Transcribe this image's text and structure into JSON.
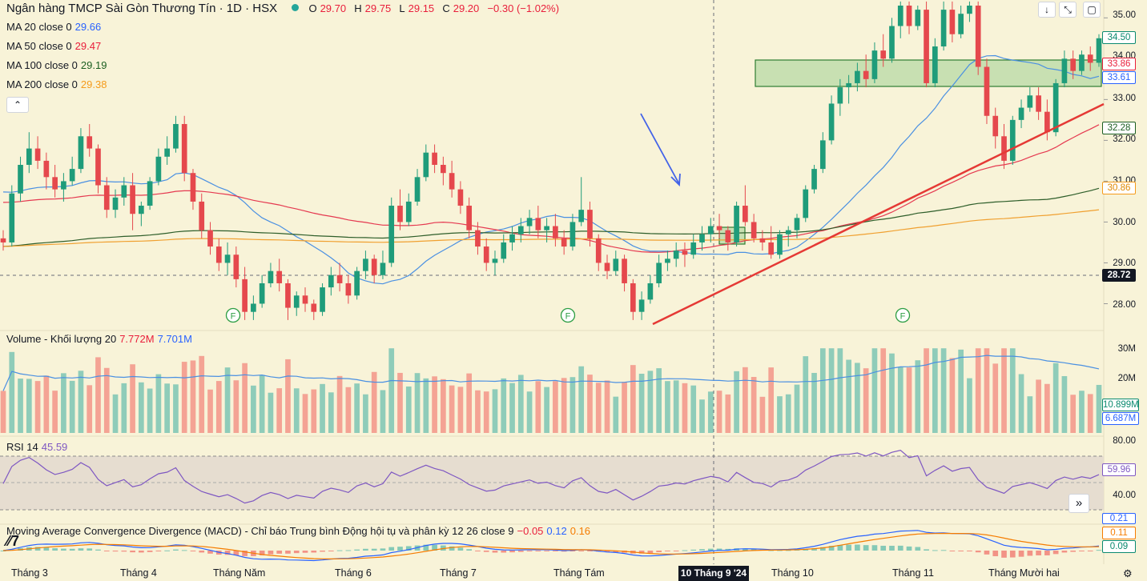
{
  "header": {
    "title": "Ngân hàng TMCP Sài Gòn Thương Tín · 1D · HSX",
    "ohlc": {
      "o_label": "O",
      "o": "29.70",
      "h_label": "H",
      "h": "29.75",
      "l_label": "L",
      "l": "29.15",
      "c_label": "C",
      "c": "29.20",
      "chg": "−0.30 (−1.02%)"
    }
  },
  "ma_legend": [
    {
      "label": "MA 20 close 0",
      "value": "29.66",
      "color": "#2962ff"
    },
    {
      "label": "MA 50 close 0",
      "value": "29.47",
      "color": "#e91e3b"
    },
    {
      "label": "MA 100 close 0",
      "value": "29.19",
      "color": "#1b5e20"
    },
    {
      "label": "MA 200 close 0",
      "value": "29.38",
      "color": "#f59b1b"
    }
  ],
  "volume_legend": {
    "label": "Volume - Khối lượng 20",
    "v1": "7.772M",
    "v2": "7.701M"
  },
  "rsi_legend": {
    "label": "RSI 14",
    "value": "45.59"
  },
  "macd_legend": {
    "label": "Moving Average Convergence Divergence (MACD) - Chỉ báo Trung bình Động hội tụ và phân kỳ 12 26 close 9",
    "v1": "−0.05",
    "v2": "0.12",
    "v3": "0.16"
  },
  "price_axis": {
    "ticks": [
      "35.00",
      "34.00",
      "33.00",
      "32.00",
      "31.00",
      "30.00",
      "29.00",
      "28.00"
    ]
  },
  "price_tags": [
    {
      "value": "34.50",
      "color": "#0b8a6f",
      "style": "outline"
    },
    {
      "value": "33.86",
      "color": "#e91e3b",
      "style": "outline"
    },
    {
      "value": "33.61",
      "color": "#2962ff",
      "style": "outline"
    },
    {
      "value": "32.28",
      "color": "#1b5e20",
      "style": "outline"
    },
    {
      "value": "30.86",
      "color": "#f59b1b",
      "style": "outline"
    },
    {
      "value": "28.72",
      "color": "#131722",
      "style": "filled"
    }
  ],
  "volume_axis": {
    "ticks": [
      "30M",
      "20M"
    ],
    "tags": [
      {
        "value": "10.899M",
        "color": "#0b8a6f"
      },
      {
        "value": "6.687M",
        "color": "#2962ff"
      }
    ]
  },
  "rsi_axis": {
    "ticks": [
      "80.00",
      "40.00"
    ],
    "tag": "59.96"
  },
  "macd_axis": {
    "tags": [
      {
        "value": "0.21",
        "color": "#2962ff"
      },
      {
        "value": "0.11",
        "color": "#f57c00"
      },
      {
        "value": "0.09",
        "color": "#0b8a6f"
      }
    ]
  },
  "x_axis": {
    "labels": [
      "Tháng 3",
      "Tháng 4",
      "Tháng Năm",
      "Tháng 6",
      "Tháng 7",
      "Tháng Tám",
      "Tháng 10",
      "Tháng 11",
      "Tháng Mười hai"
    ],
    "crosshair_label": "10 Tháng 9 '24"
  },
  "markers": {
    "dividend_symbol": "F"
  },
  "icons": [
    "chevron-up-icon",
    "arrow-down-icon",
    "expand-icon",
    "fullscreen-icon",
    "double-chevron-right-icon",
    "tradingview-logo-icon"
  ],
  "chart_data": {
    "type": "candlestick",
    "ylim": [
      27.5,
      35.3
    ],
    "rsi_levels": [
      70,
      50,
      30
    ],
    "ohlc": [
      [
        29.6,
        29.8,
        29.3,
        29.5
      ],
      [
        29.5,
        30.9,
        29.4,
        30.7
      ],
      [
        30.7,
        31.6,
        30.5,
        31.4
      ],
      [
        31.4,
        32.2,
        31.2,
        31.8
      ],
      [
        31.8,
        32.1,
        31.3,
        31.5
      ],
      [
        31.5,
        31.7,
        30.8,
        31.1
      ],
      [
        31.1,
        31.4,
        30.6,
        30.8
      ],
      [
        30.8,
        31.2,
        30.5,
        31.0
      ],
      [
        31.0,
        31.6,
        30.9,
        31.3
      ],
      [
        31.3,
        32.3,
        31.2,
        32.1
      ],
      [
        32.1,
        32.4,
        31.6,
        31.8
      ],
      [
        31.8,
        31.9,
        30.7,
        30.9
      ],
      [
        30.9,
        31.1,
        30.1,
        30.3
      ],
      [
        30.3,
        30.8,
        30.1,
        30.6
      ],
      [
        30.6,
        31.1,
        30.4,
        30.9
      ],
      [
        30.9,
        31.2,
        29.8,
        30.2
      ],
      [
        30.2,
        30.5,
        29.9,
        30.4
      ],
      [
        30.4,
        31.1,
        30.3,
        31.0
      ],
      [
        31.0,
        31.8,
        30.9,
        31.6
      ],
      [
        31.6,
        32.1,
        31.4,
        31.8
      ],
      [
        31.8,
        32.6,
        31.7,
        32.4
      ],
      [
        32.4,
        32.6,
        31.0,
        31.2
      ],
      [
        31.2,
        31.3,
        30.3,
        30.5
      ],
      [
        30.5,
        30.7,
        29.6,
        29.8
      ],
      [
        29.8,
        30.0,
        29.2,
        29.4
      ],
      [
        29.4,
        29.6,
        28.8,
        29.0
      ],
      [
        29.0,
        29.5,
        28.7,
        29.2
      ],
      [
        29.2,
        29.4,
        28.4,
        28.6
      ],
      [
        28.6,
        28.9,
        27.6,
        27.8
      ],
      [
        27.8,
        28.2,
        27.6,
        28.0
      ],
      [
        28.0,
        28.7,
        27.9,
        28.5
      ],
      [
        28.5,
        29.0,
        28.4,
        28.8
      ],
      [
        28.8,
        29.1,
        28.3,
        28.5
      ],
      [
        28.5,
        28.6,
        27.6,
        27.9
      ],
      [
        27.9,
        28.3,
        27.7,
        28.2
      ],
      [
        28.2,
        28.4,
        27.8,
        28.0
      ],
      [
        28.0,
        28.1,
        27.6,
        27.8
      ],
      [
        27.8,
        28.5,
        27.7,
        28.4
      ],
      [
        28.4,
        28.9,
        28.2,
        28.7
      ],
      [
        28.7,
        29.0,
        28.3,
        28.5
      ],
      [
        28.5,
        28.7,
        28.0,
        28.2
      ],
      [
        28.2,
        28.9,
        28.1,
        28.8
      ],
      [
        28.8,
        29.3,
        28.6,
        29.1
      ],
      [
        29.1,
        29.2,
        28.5,
        28.7
      ],
      [
        28.7,
        29.3,
        28.6,
        29.0
      ],
      [
        29.0,
        30.6,
        28.9,
        30.4
      ],
      [
        30.4,
        30.8,
        29.8,
        30.0
      ],
      [
        30.0,
        30.7,
        29.9,
        30.5
      ],
      [
        30.5,
        31.3,
        30.4,
        31.1
      ],
      [
        31.1,
        31.9,
        31.0,
        31.7
      ],
      [
        31.7,
        31.9,
        31.2,
        31.4
      ],
      [
        31.4,
        31.6,
        30.9,
        31.2
      ],
      [
        31.2,
        31.5,
        30.6,
        30.8
      ],
      [
        30.8,
        31.0,
        30.2,
        30.4
      ],
      [
        30.4,
        30.6,
        29.6,
        29.8
      ],
      [
        29.8,
        30.0,
        29.2,
        29.4
      ],
      [
        29.4,
        29.6,
        28.8,
        29.0
      ],
      [
        29.0,
        29.3,
        28.7,
        29.1
      ],
      [
        29.1,
        29.7,
        29.0,
        29.5
      ],
      [
        29.5,
        29.9,
        29.3,
        29.7
      ],
      [
        29.7,
        30.1,
        29.5,
        29.9
      ],
      [
        29.9,
        30.3,
        29.7,
        30.1
      ],
      [
        30.1,
        30.4,
        29.6,
        29.8
      ],
      [
        29.8,
        30.1,
        29.5,
        29.9
      ],
      [
        29.9,
        30.2,
        29.4,
        29.6
      ],
      [
        29.6,
        29.8,
        29.2,
        29.4
      ],
      [
        29.4,
        30.2,
        29.3,
        30.0
      ],
      [
        30.0,
        31.1,
        29.9,
        30.3
      ],
      [
        30.3,
        30.5,
        29.4,
        29.6
      ],
      [
        29.6,
        29.7,
        28.8,
        29.0
      ],
      [
        29.0,
        29.2,
        28.6,
        28.8
      ],
      [
        28.8,
        29.3,
        28.7,
        29.1
      ],
      [
        29.1,
        29.2,
        28.3,
        28.5
      ],
      [
        28.5,
        28.6,
        27.6,
        27.8
      ],
      [
        27.8,
        28.3,
        27.6,
        28.1
      ],
      [
        28.1,
        28.7,
        28.0,
        28.5
      ],
      [
        28.5,
        29.2,
        28.4,
        29.0
      ],
      [
        29.0,
        29.3,
        28.8,
        29.1
      ],
      [
        29.1,
        29.5,
        28.9,
        29.3
      ],
      [
        29.3,
        29.5,
        28.9,
        29.2
      ],
      [
        29.2,
        29.7,
        29.1,
        29.5
      ],
      [
        29.5,
        29.9,
        29.3,
        29.7
      ],
      [
        29.7,
        30.1,
        29.5,
        29.9
      ],
      [
        29.9,
        30.2,
        29.6,
        29.8
      ],
      [
        29.8,
        29.9,
        29.3,
        29.5
      ],
      [
        29.5,
        30.5,
        29.4,
        30.4
      ],
      [
        30.4,
        30.9,
        29.9,
        30.0
      ],
      [
        30.0,
        30.2,
        29.5,
        29.6
      ],
      [
        29.6,
        29.8,
        29.3,
        29.5
      ],
      [
        29.5,
        29.9,
        29.1,
        29.2
      ],
      [
        29.2,
        29.8,
        29.1,
        29.7
      ],
      [
        29.7,
        29.9,
        29.4,
        29.8
      ],
      [
        29.8,
        30.2,
        29.6,
        30.1
      ],
      [
        30.1,
        30.9,
        30.0,
        30.8
      ],
      [
        30.8,
        31.4,
        30.7,
        31.3
      ],
      [
        31.3,
        32.2,
        31.2,
        32.0
      ],
      [
        32.0,
        33.1,
        31.9,
        32.9
      ],
      [
        32.9,
        33.5,
        32.6,
        33.3
      ],
      [
        33.3,
        33.6,
        32.9,
        33.4
      ],
      [
        33.4,
        33.9,
        33.2,
        33.7
      ],
      [
        33.7,
        34.1,
        33.3,
        33.5
      ],
      [
        33.5,
        34.4,
        33.4,
        34.2
      ],
      [
        34.2,
        34.6,
        33.8,
        34.0
      ],
      [
        34.0,
        35.0,
        33.9,
        34.8
      ],
      [
        34.8,
        35.4,
        34.5,
        35.3
      ],
      [
        35.3,
        35.4,
        34.6,
        34.8
      ],
      [
        34.8,
        35.3,
        34.7,
        35.2
      ],
      [
        35.2,
        35.4,
        33.3,
        33.4
      ],
      [
        33.4,
        34.5,
        33.3,
        34.3
      ],
      [
        34.3,
        35.4,
        34.2,
        35.2
      ],
      [
        35.2,
        35.4,
        34.4,
        34.6
      ],
      [
        34.6,
        35.3,
        34.5,
        35.1
      ],
      [
        35.1,
        35.4,
        34.9,
        35.3
      ],
      [
        35.3,
        35.4,
        33.6,
        33.8
      ],
      [
        33.8,
        34.0,
        32.4,
        32.6
      ],
      [
        32.6,
        32.8,
        31.8,
        32.1
      ],
      [
        32.1,
        32.4,
        31.3,
        31.5
      ],
      [
        31.5,
        32.6,
        31.4,
        32.5
      ],
      [
        32.5,
        33.0,
        32.3,
        32.8
      ],
      [
        32.8,
        33.3,
        32.7,
        33.1
      ],
      [
        33.1,
        33.3,
        32.5,
        32.7
      ],
      [
        32.7,
        33.0,
        32.0,
        32.2
      ],
      [
        32.2,
        33.5,
        32.1,
        33.4
      ],
      [
        33.4,
        34.2,
        33.3,
        34.0
      ],
      [
        34.0,
        34.2,
        33.5,
        33.7
      ],
      [
        33.7,
        34.2,
        33.6,
        34.1
      ],
      [
        34.1,
        34.3,
        33.7,
        33.9
      ],
      [
        33.9,
        34.6,
        33.8,
        34.5
      ]
    ],
    "volume_scale_max_m": 36
  }
}
